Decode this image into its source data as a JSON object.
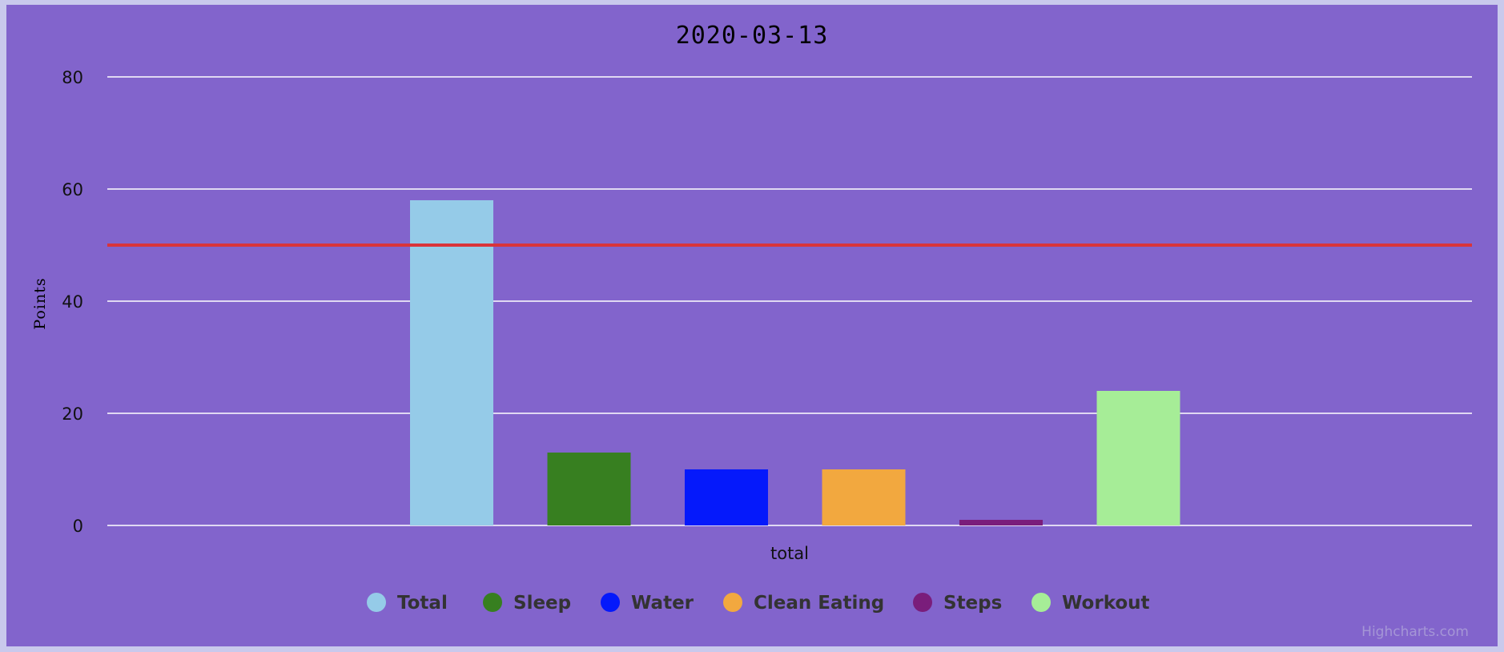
{
  "chart_data": {
    "type": "bar",
    "title": "2020-03-13",
    "ylabel": "Points",
    "xlabel": "",
    "categories": [
      "total"
    ],
    "ylim": [
      0,
      80
    ],
    "yticks": [
      0,
      20,
      40,
      60,
      80
    ],
    "grid": true,
    "plot_line": {
      "value": 50,
      "color": "#d9343a"
    },
    "series": [
      {
        "name": "Total",
        "values": [
          58
        ],
        "color": "#95cbe8"
      },
      {
        "name": "Sleep",
        "values": [
          13
        ],
        "color": "#377f20"
      },
      {
        "name": "Water",
        "values": [
          10
        ],
        "color": "#0519fb"
      },
      {
        "name": "Clean Eating",
        "values": [
          10
        ],
        "color": "#f2a83f"
      },
      {
        "name": "Steps",
        "values": [
          1
        ],
        "color": "#7a1d7b"
      },
      {
        "name": "Workout",
        "values": [
          24
        ],
        "color": "#a6ed97"
      }
    ],
    "legend_position": "bottom",
    "background_color": "#8264cc"
  },
  "credits": "Highcharts.com"
}
